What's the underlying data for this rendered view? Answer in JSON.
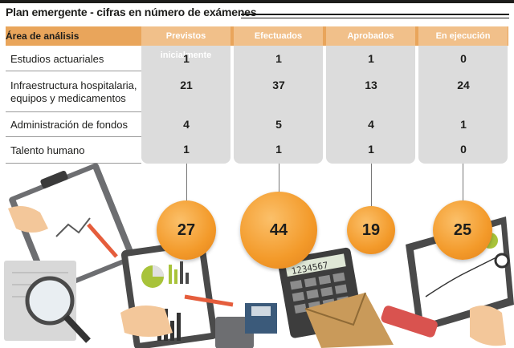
{
  "title": "Plan emergente - cifras en número de exámenes",
  "header": {
    "area_label": "Área de análisis",
    "columns": [
      "Previstos inicialmente",
      "Efectuados",
      "Aprobados",
      "En ejecución"
    ]
  },
  "rows": [
    {
      "label_line1": "Estudios actuariales",
      "label_line2": "",
      "values": [
        "1",
        "1",
        "1",
        "0"
      ]
    },
    {
      "label_line1": "Infraestructura hospitalaria,",
      "label_line2": "equipos y medicamentos",
      "values": [
        "21",
        "37",
        "13",
        "24"
      ]
    },
    {
      "label_line1": "Administración de fondos",
      "label_line2": "",
      "values": [
        "4",
        "5",
        "4",
        "1"
      ]
    },
    {
      "label_line1": "Talento humano",
      "label_line2": "",
      "values": [
        "1",
        "1",
        "1",
        "0"
      ]
    }
  ],
  "totals": [
    "27",
    "44",
    "19",
    "25"
  ],
  "colors": {
    "header_orange": "#e9a55b",
    "header_light": "#f1c08a",
    "column_gray": "#dcdcdc",
    "circle_orange": "#f39a2a"
  },
  "illustration": {
    "calculator_display": "1234567"
  }
}
